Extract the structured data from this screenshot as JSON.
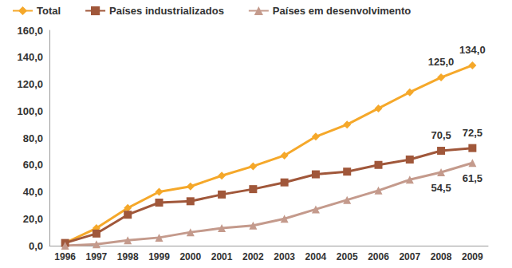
{
  "chart_data": {
    "type": "line",
    "categories": [
      "1996",
      "1997",
      "1998",
      "1999",
      "2000",
      "2001",
      "2002",
      "2003",
      "2004",
      "2005",
      "2006",
      "2007",
      "2008",
      "2009"
    ],
    "series": [
      {
        "name": "Total",
        "color": "#f5a82a",
        "marker": "diamond",
        "values": [
          2,
          13,
          28,
          40,
          44,
          52,
          59,
          67,
          81,
          90,
          102,
          114,
          125.0,
          134.0
        ],
        "value_labels": [
          null,
          null,
          null,
          null,
          null,
          null,
          null,
          null,
          null,
          null,
          null,
          null,
          "125,0",
          "134,0"
        ]
      },
      {
        "name": "Países industrializados",
        "color": "#a0573a",
        "marker": "square",
        "values": [
          2,
          9,
          23,
          32,
          33,
          38,
          42,
          47,
          53,
          55,
          60,
          64,
          70.5,
          72.5
        ],
        "value_labels": [
          null,
          null,
          null,
          null,
          null,
          null,
          null,
          null,
          null,
          null,
          null,
          null,
          "70,5",
          "72,5"
        ]
      },
      {
        "name": "Países em desenvolvimento",
        "color": "#c49a8c",
        "marker": "triangle",
        "values": [
          0,
          1,
          4,
          6,
          10,
          13,
          15,
          20,
          27,
          34,
          41,
          49,
          54.5,
          61.5
        ],
        "value_labels": [
          null,
          null,
          null,
          null,
          null,
          null,
          null,
          null,
          null,
          null,
          null,
          null,
          "54,5",
          "61,5"
        ]
      }
    ],
    "ylim": [
      0,
      160
    ],
    "yticks": [
      {
        "value": 0,
        "label": "0,0"
      },
      {
        "value": 20,
        "label": "20,0"
      },
      {
        "value": 40,
        "label": "40,0"
      },
      {
        "value": 60,
        "label": "60,0"
      },
      {
        "value": 80,
        "label": "80,0"
      },
      {
        "value": 100,
        "label": "100,0"
      },
      {
        "value": 120,
        "label": "120,0"
      },
      {
        "value": 140,
        "label": "140,0"
      },
      {
        "value": 160,
        "label": "160,0"
      }
    ],
    "grid": false,
    "legend": "top-left",
    "data_labels": true
  }
}
